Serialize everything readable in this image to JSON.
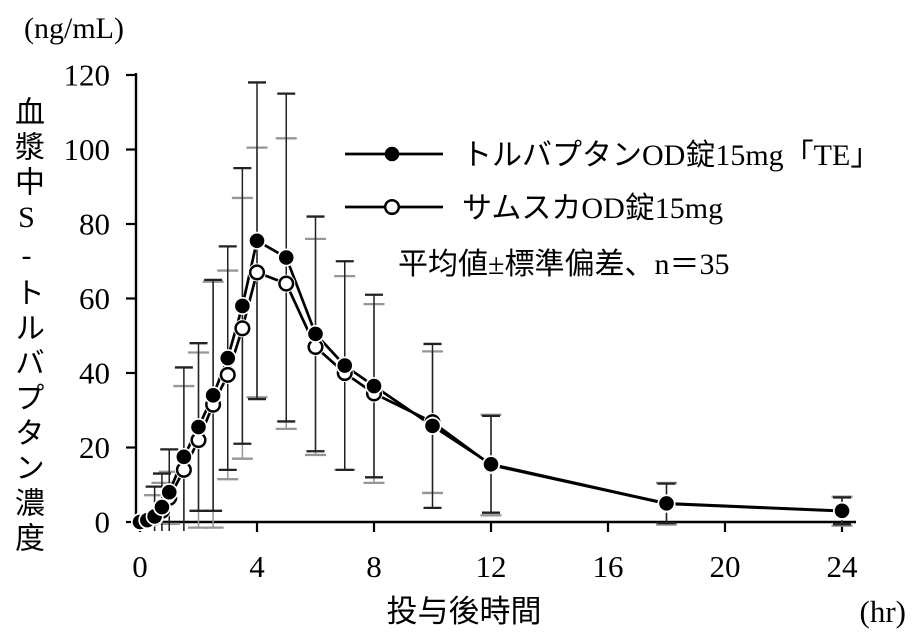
{
  "chart_data": {
    "type": "line",
    "title": "",
    "y_unit_label": "(ng/mL)",
    "x_unit_label": "(hr)",
    "y_axis_title": "血漿中S-トルバプタン濃度",
    "x_axis_title": "投与後時間",
    "note": "平均値±標準偏差、n＝35",
    "x_axis": {
      "ticks": [
        0,
        4,
        8,
        12,
        16,
        20,
        24
      ],
      "min": 0,
      "max": 24
    },
    "y_axis": {
      "ticks": [
        0,
        20,
        40,
        60,
        80,
        100,
        120
      ],
      "min": 0,
      "max": 120
    },
    "x": [
      0,
      0.25,
      0.5,
      0.75,
      1,
      1.5,
      2,
      2.5,
      3,
      3.5,
      4,
      5,
      6,
      7,
      8,
      10,
      12,
      18,
      24
    ],
    "series": [
      {
        "name": "トルバプタンOD錠15mg「TE」",
        "marker": "filled",
        "line_color": "#000000",
        "errorbar_color": "#222222",
        "values": [
          0,
          0.5,
          1.5,
          4,
          8,
          17.5,
          25.5,
          34,
          44,
          58,
          75.5,
          71,
          50.5,
          42,
          36.5,
          25.8,
          15.5,
          5,
          3
        ],
        "sd": [
          0,
          0.8,
          8,
          9,
          11.5,
          24,
          22.5,
          31,
          30,
          37,
          42.5,
          44,
          31.5,
          28,
          24.5,
          22,
          13,
          5.3,
          3.6
        ]
      },
      {
        "name": "サムスカOD錠15mg",
        "marker": "open",
        "line_color": "#000000",
        "errorbar_color": "#969696",
        "values": [
          0,
          0.4,
          1.2,
          3,
          6.5,
          14,
          22,
          31.5,
          39.5,
          52,
          67,
          64,
          47,
          40,
          34.5,
          26.8,
          15.3,
          4.9,
          2.9
        ],
        "sd": [
          0,
          0.6,
          6,
          7.5,
          7,
          22.5,
          23.5,
          33,
          28,
          35,
          33.5,
          39,
          29,
          26,
          24,
          19,
          13.5,
          5.6,
          3.9
        ]
      }
    ],
    "legend_position": "upper-right-inside",
    "grid": false
  }
}
